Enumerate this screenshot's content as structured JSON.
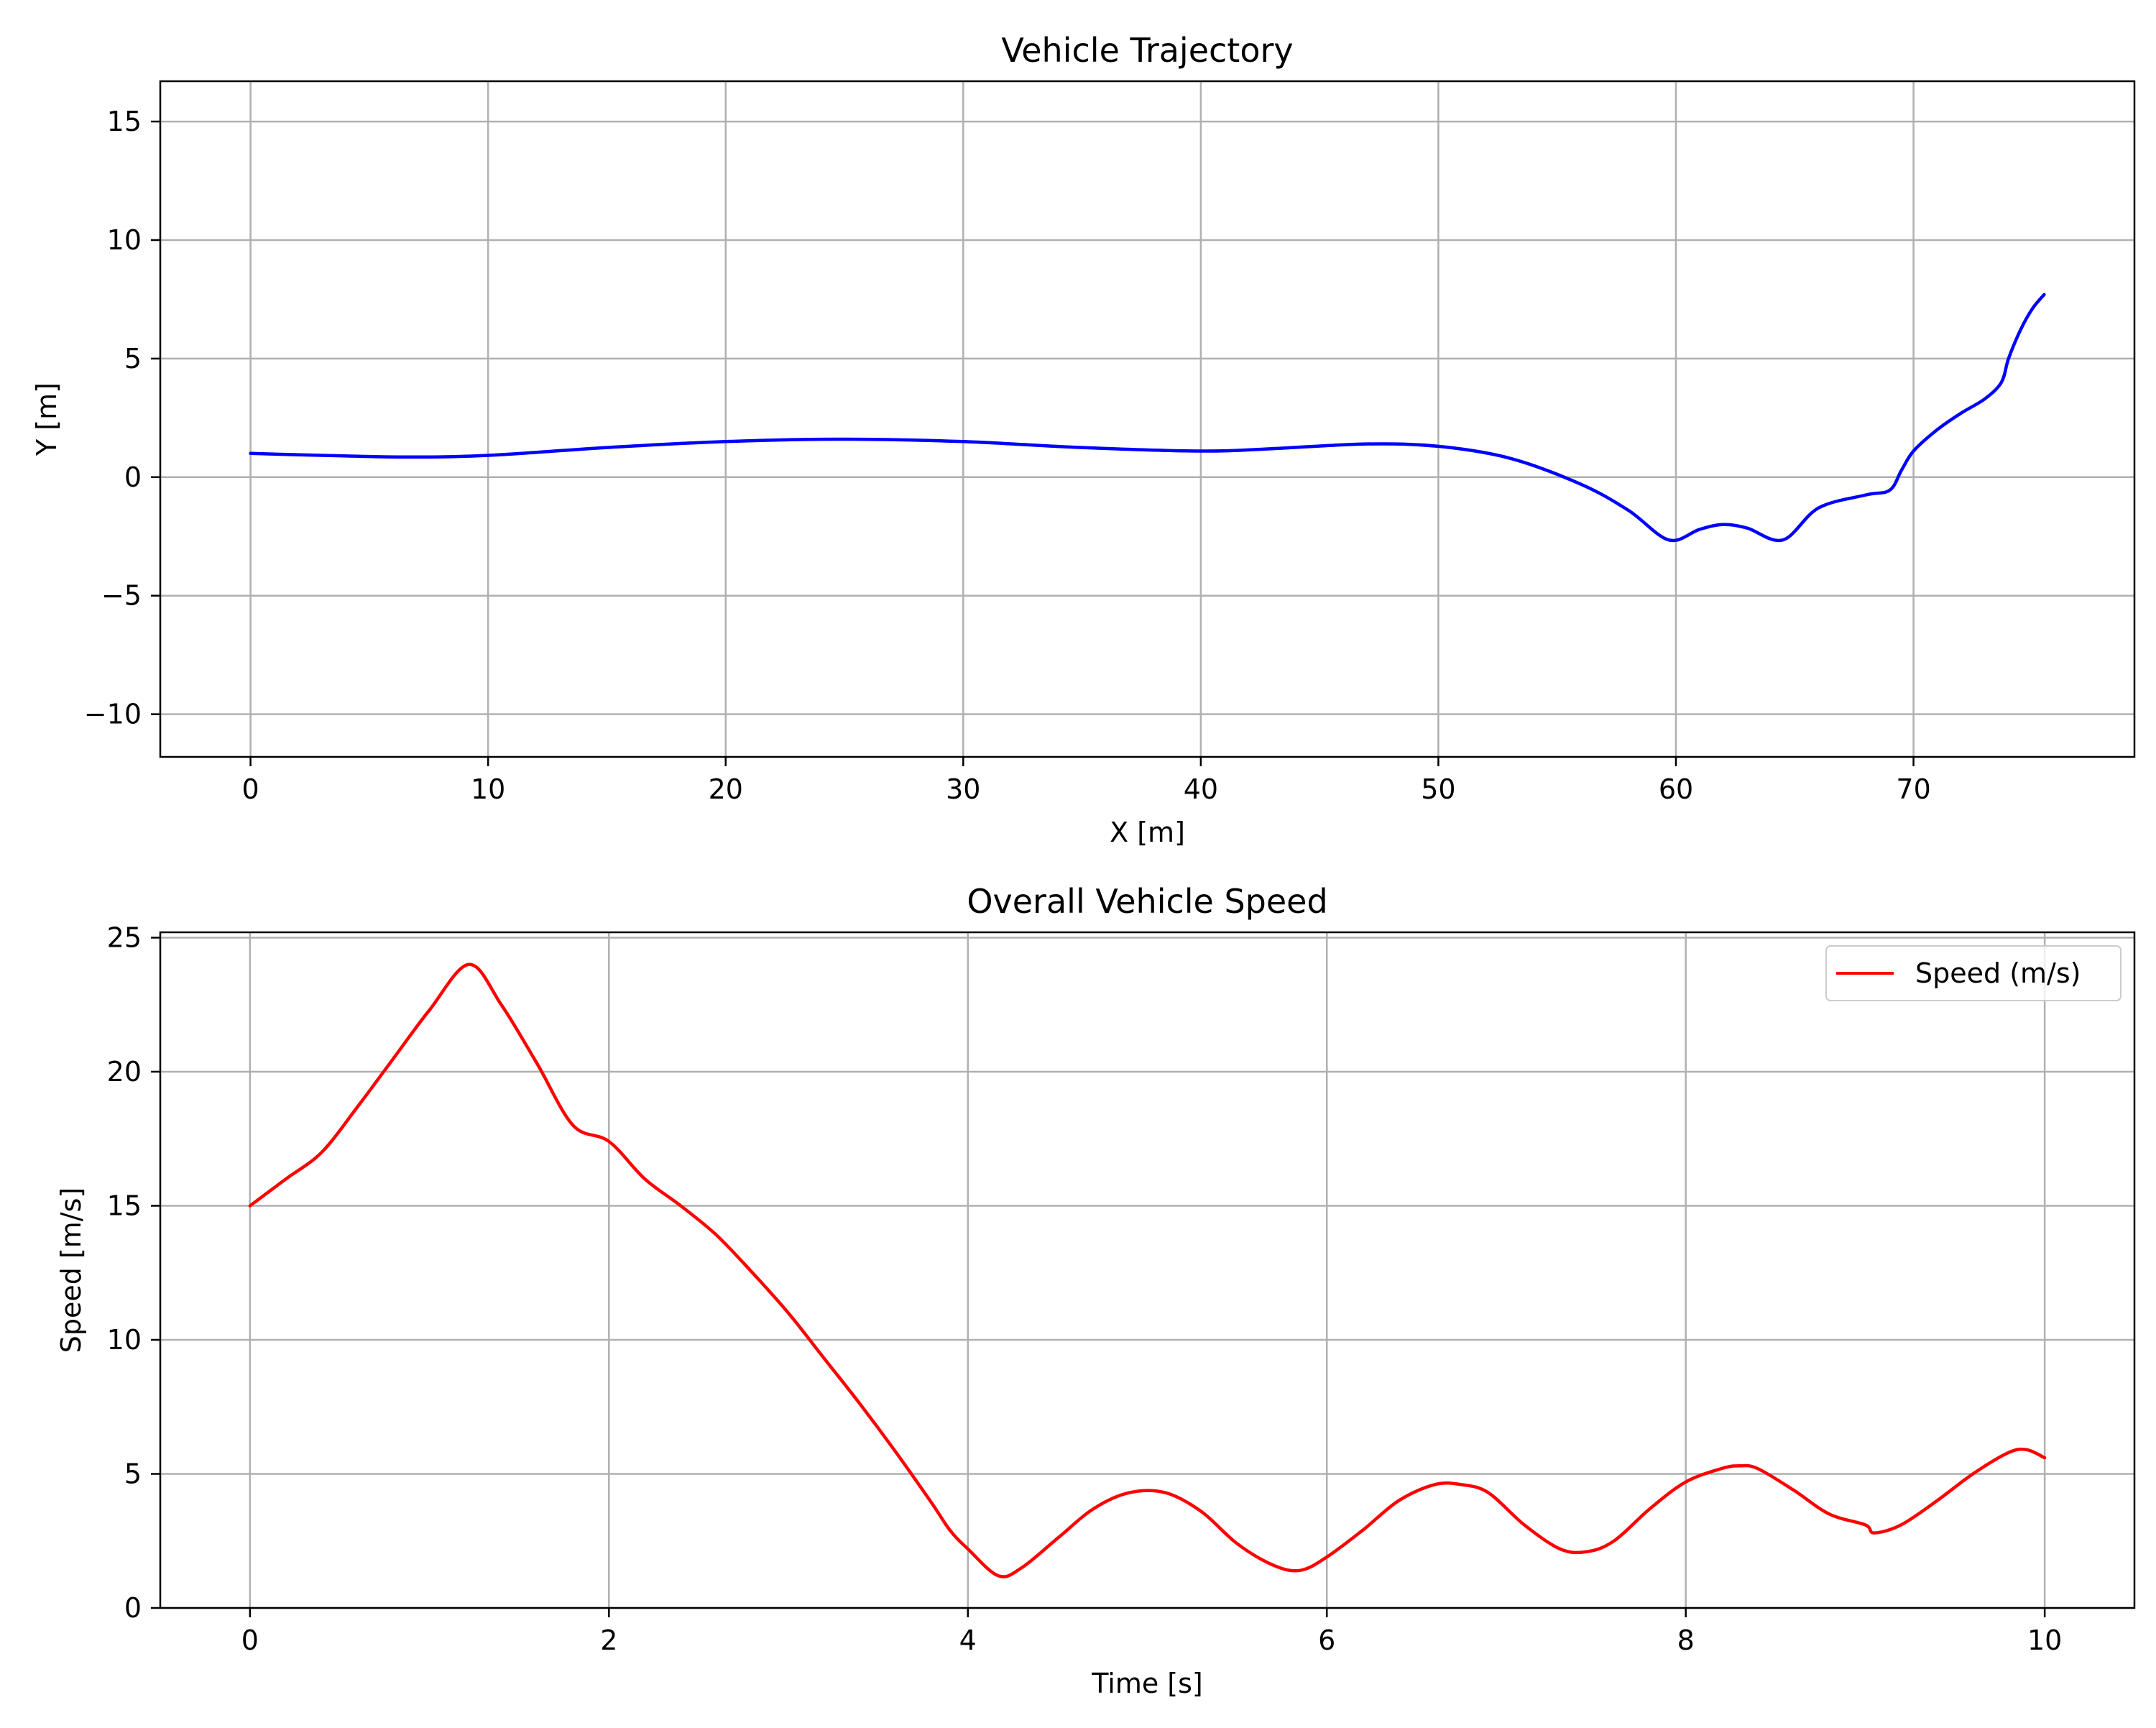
{
  "chart_data": [
    {
      "type": "line",
      "title": "Vehicle Trajectory",
      "xlabel": "X [m]",
      "ylabel": "Y [m]",
      "xlim": [
        -3.8,
        79.3
      ],
      "ylim": [
        -11.8,
        16.7
      ],
      "xticks": [
        0,
        10,
        20,
        30,
        40,
        50,
        60,
        70
      ],
      "yticks": [
        -10,
        -5,
        0,
        5,
        10,
        15
      ],
      "xtick_labels": [
        "0",
        "10",
        "20",
        "30",
        "40",
        "50",
        "60",
        "70"
      ],
      "ytick_labels": [
        "−10",
        "−5",
        "0",
        "5",
        "10",
        "15"
      ],
      "grid": true,
      "legend": null,
      "series": [
        {
          "color": "#0000ff",
          "x": [
            0,
            3,
            6.5,
            10,
            15,
            20,
            25,
            30,
            35,
            40,
            43,
            47,
            50,
            53,
            56,
            58,
            59.7,
            61,
            62,
            63,
            64.5,
            66,
            68,
            69,
            69.5,
            70,
            71,
            72,
            73,
            73.7,
            74,
            74.5,
            75,
            75.5
          ],
          "y": [
            1.0,
            0.92,
            0.85,
            0.92,
            1.25,
            1.5,
            1.6,
            1.5,
            1.25,
            1.1,
            1.2,
            1.4,
            1.3,
            0.8,
            -0.3,
            -1.4,
            -2.65,
            -2.2,
            -2.0,
            -2.15,
            -2.65,
            -1.3,
            -0.75,
            -0.55,
            0.3,
            1.1,
            2.0,
            2.7,
            3.3,
            4.0,
            5.0,
            6.2,
            7.1,
            7.7
          ]
        }
      ]
    },
    {
      "type": "line",
      "title": "Overall Vehicle Speed",
      "xlabel": "Time [s]",
      "ylabel": "Speed [m/s]",
      "xlim": [
        -0.5,
        10.5
      ],
      "ylim": [
        0,
        25.2
      ],
      "xticks": [
        0,
        2,
        4,
        6,
        8,
        10
      ],
      "yticks": [
        0,
        5,
        10,
        15,
        20,
        25
      ],
      "xtick_labels": [
        "0",
        "2",
        "4",
        "6",
        "8",
        "10"
      ],
      "ytick_labels": [
        "0",
        "5",
        "10",
        "15",
        "20",
        "25"
      ],
      "grid": true,
      "legend": "top-right",
      "series": [
        {
          "name": "Speed (m/s)",
          "color": "#ff0000",
          "x": [
            0,
            0.2,
            0.4,
            0.6,
            0.8,
            1.0,
            1.22,
            1.4,
            1.6,
            1.8,
            2.0,
            2.2,
            2.4,
            2.6,
            2.8,
            3.0,
            3.2,
            3.4,
            3.6,
            3.8,
            3.9,
            4.0,
            4.17,
            4.3,
            4.5,
            4.7,
            4.9,
            5.1,
            5.3,
            5.5,
            5.7,
            5.85,
            6.0,
            6.2,
            6.4,
            6.6,
            6.75,
            6.9,
            7.1,
            7.3,
            7.45,
            7.6,
            7.8,
            8.0,
            8.2,
            8.3,
            8.4,
            8.6,
            8.8,
            9.0,
            9.05,
            9.2,
            9.4,
            9.6,
            9.8,
            9.9,
            10.0
          ],
          "y": [
            15.0,
            16.0,
            17.0,
            18.7,
            20.5,
            22.3,
            24.0,
            22.5,
            20.3,
            18.0,
            17.4,
            16.0,
            15.0,
            13.9,
            12.5,
            11.0,
            9.3,
            7.6,
            5.8,
            3.9,
            2.9,
            2.2,
            1.2,
            1.5,
            2.6,
            3.7,
            4.3,
            4.3,
            3.6,
            2.4,
            1.6,
            1.4,
            1.9,
            2.9,
            4.0,
            4.6,
            4.6,
            4.3,
            3.1,
            2.2,
            2.1,
            2.5,
            3.7,
            4.7,
            5.2,
            5.3,
            5.2,
            4.4,
            3.5,
            3.1,
            2.8,
            3.1,
            4.0,
            5.0,
            5.8,
            5.9,
            5.6
          ]
        }
      ]
    }
  ]
}
